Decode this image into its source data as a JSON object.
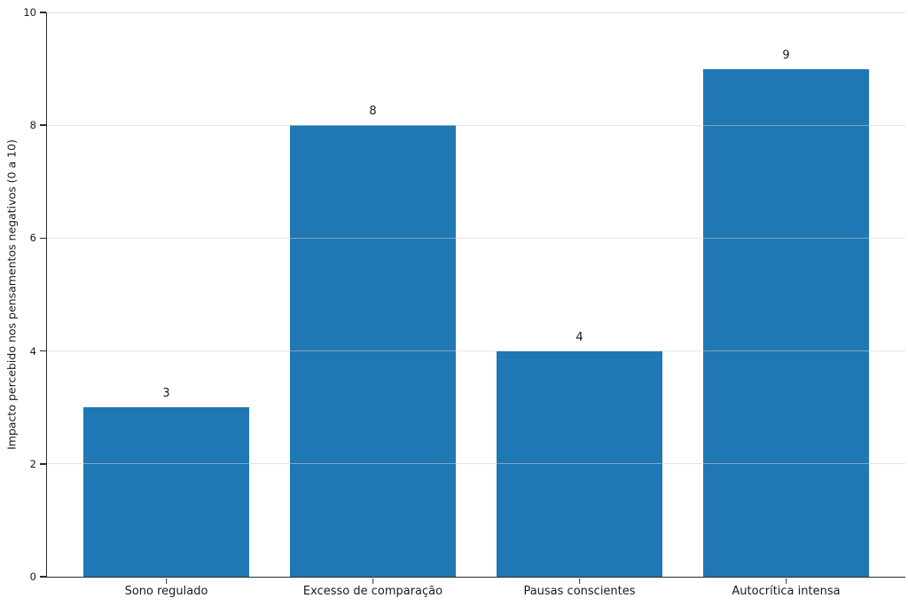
{
  "chart_data": {
    "type": "bar",
    "categories": [
      "Sono regulado",
      "Excesso de comparação",
      "Pausas conscientes",
      "Autocrítica intensa"
    ],
    "values": [
      3,
      8,
      4,
      9
    ],
    "value_labels": [
      "3",
      "8",
      "4",
      "9"
    ],
    "title": "",
    "xlabel": "",
    "ylabel": "Impacto percebido nos pensamentos negativos (0 a 10)",
    "ylim": [
      0,
      10
    ],
    "yticks": [
      "0",
      "2",
      "4",
      "6",
      "8",
      "10"
    ],
    "grid": true,
    "legend": "none",
    "bar_color": "#1f77b4",
    "axis_color": "#2b2b2b",
    "grid_color": "#e9e9e9",
    "text_color": "#1a1a1a",
    "background_color": "#ffffff"
  }
}
